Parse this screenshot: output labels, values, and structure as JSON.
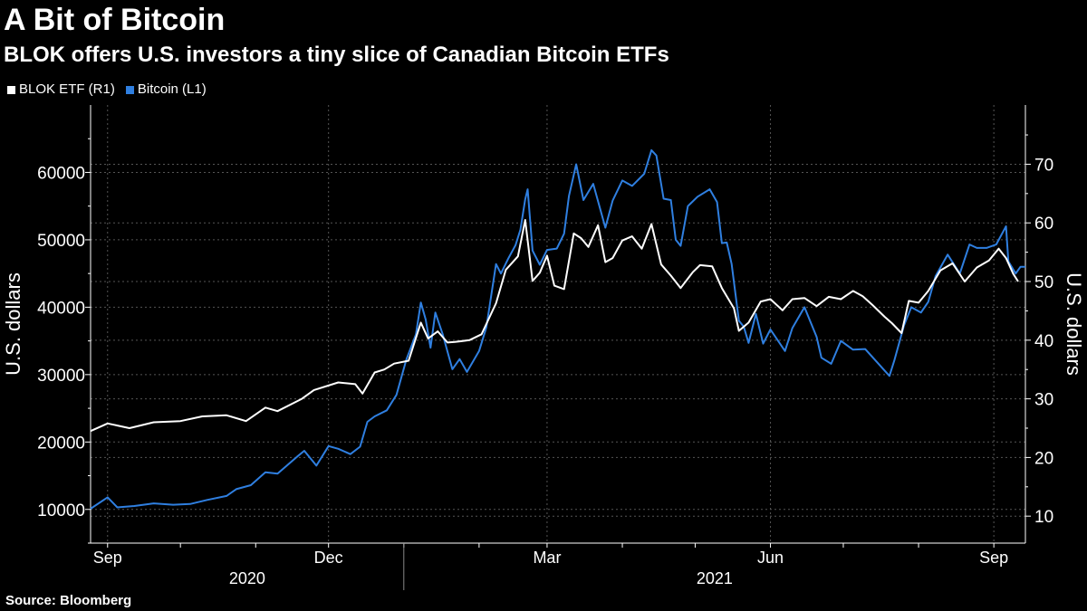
{
  "title": "A Bit of Bitcoin",
  "subtitle": "BLOK offers U.S. investors a tiny slice of Canadian Bitcoin ETFs",
  "source": "Source: Bloomberg",
  "colors": {
    "background": "#000000",
    "blok": "#ffffff",
    "bitcoin": "#2f7fe0",
    "grid": "#555555"
  },
  "chart_data": {
    "type": "line",
    "title": "A Bit of Bitcoin",
    "x_start": "2020-08-25",
    "x_end": "2021-09-14",
    "month_ticks": [
      "2020-09-01",
      "2020-10-01",
      "2020-11-01",
      "2020-12-01",
      "2021-01-01",
      "2021-02-01",
      "2021-03-01",
      "2021-04-01",
      "2021-05-01",
      "2021-06-01",
      "2021-07-01",
      "2021-08-01",
      "2021-09-01"
    ],
    "quarter_labels": [
      {
        "date": "2020-09-01",
        "label": "Sep"
      },
      {
        "date": "2020-12-01",
        "label": "Dec"
      },
      {
        "date": "2021-03-01",
        "label": "Mar"
      },
      {
        "date": "2021-06-01",
        "label": "Jun"
      },
      {
        "date": "2021-09-01",
        "label": "Sep"
      }
    ],
    "year_labels": [
      {
        "label": "2020",
        "from": "2020-08-25",
        "to": "2021-01-01"
      },
      {
        "label": "2021",
        "from": "2021-01-01",
        "to": "2021-09-14"
      }
    ],
    "year_divider": "2021-01-01",
    "left_axis": {
      "label": "U.S. dollars",
      "min": 5000,
      "max": 70000,
      "ticks": [
        10000,
        20000,
        30000,
        40000,
        50000,
        60000
      ]
    },
    "right_axis": {
      "label": "U.S. dollars",
      "min": 5.4,
      "max": 80.1,
      "ticks": [
        10,
        20,
        30,
        40,
        50,
        60,
        70
      ]
    },
    "series": [
      {
        "name": "Bitcoin (L1)",
        "axis": "left",
        "color": "#2f7fe0",
        "points": [
          [
            "2020-08-25",
            10100
          ],
          [
            "2020-09-01",
            11800
          ],
          [
            "2020-09-05",
            10300
          ],
          [
            "2020-09-12",
            10500
          ],
          [
            "2020-09-20",
            10900
          ],
          [
            "2020-09-28",
            10700
          ],
          [
            "2020-10-05",
            10800
          ],
          [
            "2020-10-12",
            11400
          ],
          [
            "2020-10-20",
            12000
          ],
          [
            "2020-10-24",
            13000
          ],
          [
            "2020-10-30",
            13600
          ],
          [
            "2020-11-05",
            15500
          ],
          [
            "2020-11-10",
            15300
          ],
          [
            "2020-11-18",
            17800
          ],
          [
            "2020-11-21",
            18700
          ],
          [
            "2020-11-26",
            16500
          ],
          [
            "2020-12-01",
            19400
          ],
          [
            "2020-12-05",
            19000
          ],
          [
            "2020-12-10",
            18200
          ],
          [
            "2020-12-14",
            19300
          ],
          [
            "2020-12-17",
            23000
          ],
          [
            "2020-12-20",
            23800
          ],
          [
            "2020-12-25",
            24700
          ],
          [
            "2020-12-29",
            27000
          ],
          [
            "2021-01-02",
            32200
          ],
          [
            "2021-01-06",
            36000
          ],
          [
            "2021-01-08",
            40700
          ],
          [
            "2021-01-10",
            38200
          ],
          [
            "2021-01-12",
            34000
          ],
          [
            "2021-01-14",
            39200
          ],
          [
            "2021-01-17",
            36000
          ],
          [
            "2021-01-21",
            30800
          ],
          [
            "2021-01-24",
            32300
          ],
          [
            "2021-01-27",
            30400
          ],
          [
            "2021-02-01",
            33500
          ],
          [
            "2021-02-04",
            37000
          ],
          [
            "2021-02-08",
            46400
          ],
          [
            "2021-02-10",
            45000
          ],
          [
            "2021-02-13",
            47200
          ],
          [
            "2021-02-16",
            49200
          ],
          [
            "2021-02-18",
            51500
          ],
          [
            "2021-02-20",
            56000
          ],
          [
            "2021-02-21",
            57500
          ],
          [
            "2021-02-23",
            48400
          ],
          [
            "2021-02-26",
            46300
          ],
          [
            "2021-03-01",
            48500
          ],
          [
            "2021-03-05",
            48700
          ],
          [
            "2021-03-08",
            50900
          ],
          [
            "2021-03-10",
            56500
          ],
          [
            "2021-03-13",
            61200
          ],
          [
            "2021-03-16",
            55900
          ],
          [
            "2021-03-20",
            58300
          ],
          [
            "2021-03-25",
            51800
          ],
          [
            "2021-03-28",
            55800
          ],
          [
            "2021-04-01",
            58800
          ],
          [
            "2021-04-05",
            58000
          ],
          [
            "2021-04-10",
            59800
          ],
          [
            "2021-04-13",
            63300
          ],
          [
            "2021-04-15",
            62500
          ],
          [
            "2021-04-18",
            56100
          ],
          [
            "2021-04-21",
            55900
          ],
          [
            "2021-04-23",
            50000
          ],
          [
            "2021-04-25",
            49100
          ],
          [
            "2021-04-28",
            55000
          ],
          [
            "2021-05-02",
            56400
          ],
          [
            "2021-05-07",
            57500
          ],
          [
            "2021-05-10",
            55600
          ],
          [
            "2021-05-12",
            49500
          ],
          [
            "2021-05-14",
            49600
          ],
          [
            "2021-05-16",
            46400
          ],
          [
            "2021-05-19",
            38000
          ],
          [
            "2021-05-21",
            37100
          ],
          [
            "2021-05-23",
            34700
          ],
          [
            "2021-05-26",
            39000
          ],
          [
            "2021-05-29",
            34600
          ],
          [
            "2021-06-01",
            36700
          ],
          [
            "2021-06-07",
            33500
          ],
          [
            "2021-06-10",
            36900
          ],
          [
            "2021-06-15",
            40000
          ],
          [
            "2021-06-20",
            35600
          ],
          [
            "2021-06-22",
            32500
          ],
          [
            "2021-06-26",
            31600
          ],
          [
            "2021-06-30",
            35000
          ],
          [
            "2021-07-05",
            33700
          ],
          [
            "2021-07-10",
            33800
          ],
          [
            "2021-07-15",
            31800
          ],
          [
            "2021-07-20",
            29800
          ],
          [
            "2021-07-22",
            32100
          ],
          [
            "2021-07-26",
            37300
          ],
          [
            "2021-07-29",
            40000
          ],
          [
            "2021-08-02",
            39200
          ],
          [
            "2021-08-05",
            40800
          ],
          [
            "2021-08-08",
            44600
          ],
          [
            "2021-08-13",
            47800
          ],
          [
            "2021-08-18",
            45000
          ],
          [
            "2021-08-22",
            49300
          ],
          [
            "2021-08-25",
            48800
          ],
          [
            "2021-08-29",
            48800
          ],
          [
            "2021-09-02",
            49300
          ],
          [
            "2021-09-06",
            52000
          ],
          [
            "2021-09-07",
            46800
          ],
          [
            "2021-09-10",
            45000
          ],
          [
            "2021-09-12",
            46000
          ],
          [
            "2021-09-14",
            46000
          ]
        ]
      },
      {
        "name": "BLOK ETF (R1)",
        "axis": "right",
        "color": "#ffffff",
        "points": [
          [
            "2020-08-25",
            24.5
          ],
          [
            "2020-09-01",
            25.8
          ],
          [
            "2020-09-10",
            25.0
          ],
          [
            "2020-09-20",
            26.0
          ],
          [
            "2020-10-01",
            26.2
          ],
          [
            "2020-10-10",
            27.0
          ],
          [
            "2020-10-20",
            27.2
          ],
          [
            "2020-10-28",
            26.2
          ],
          [
            "2020-11-05",
            28.5
          ],
          [
            "2020-11-10",
            27.9
          ],
          [
            "2020-11-20",
            30.0
          ],
          [
            "2020-11-25",
            31.5
          ],
          [
            "2020-12-05",
            32.8
          ],
          [
            "2020-12-12",
            32.5
          ],
          [
            "2020-12-15",
            30.9
          ],
          [
            "2020-12-20",
            34.5
          ],
          [
            "2020-12-24",
            35.0
          ],
          [
            "2020-12-28",
            36.0
          ],
          [
            "2021-01-03",
            36.5
          ],
          [
            "2021-01-08",
            43.0
          ],
          [
            "2021-01-11",
            40.3
          ],
          [
            "2021-01-15",
            41.5
          ],
          [
            "2021-01-19",
            39.6
          ],
          [
            "2021-01-22",
            39.7
          ],
          [
            "2021-01-28",
            40.0
          ],
          [
            "2021-02-02",
            41.0
          ],
          [
            "2021-02-08",
            46.3
          ],
          [
            "2021-02-12",
            52.0
          ],
          [
            "2021-02-17",
            54.3
          ],
          [
            "2021-02-20",
            60.5
          ],
          [
            "2021-02-23",
            50.1
          ],
          [
            "2021-02-26",
            51.5
          ],
          [
            "2021-03-01",
            54.4
          ],
          [
            "2021-03-04",
            49.3
          ],
          [
            "2021-03-08",
            48.7
          ],
          [
            "2021-03-12",
            58.2
          ],
          [
            "2021-03-15",
            57.4
          ],
          [
            "2021-03-18",
            55.9
          ],
          [
            "2021-03-22",
            59.6
          ],
          [
            "2021-03-25",
            53.3
          ],
          [
            "2021-03-28",
            54.0
          ],
          [
            "2021-04-01",
            57.0
          ],
          [
            "2021-04-05",
            57.7
          ],
          [
            "2021-04-09",
            55.6
          ],
          [
            "2021-04-13",
            59.8
          ],
          [
            "2021-04-17",
            52.9
          ],
          [
            "2021-04-21",
            51.0
          ],
          [
            "2021-04-25",
            48.9
          ],
          [
            "2021-04-30",
            51.6
          ],
          [
            "2021-05-03",
            52.8
          ],
          [
            "2021-05-08",
            52.6
          ],
          [
            "2021-05-12",
            48.9
          ],
          [
            "2021-05-17",
            45.4
          ],
          [
            "2021-05-19",
            41.6
          ],
          [
            "2021-05-23",
            43.0
          ],
          [
            "2021-05-28",
            46.6
          ],
          [
            "2021-06-01",
            47.0
          ],
          [
            "2021-06-06",
            45.1
          ],
          [
            "2021-06-10",
            47.0
          ],
          [
            "2021-06-15",
            47.2
          ],
          [
            "2021-06-20",
            45.8
          ],
          [
            "2021-06-25",
            47.4
          ],
          [
            "2021-06-30",
            47.0
          ],
          [
            "2021-07-05",
            48.4
          ],
          [
            "2021-07-09",
            47.5
          ],
          [
            "2021-07-13",
            46.0
          ],
          [
            "2021-07-18",
            44.0
          ],
          [
            "2021-07-21",
            42.9
          ],
          [
            "2021-07-25",
            41.2
          ],
          [
            "2021-07-28",
            46.7
          ],
          [
            "2021-08-01",
            46.4
          ],
          [
            "2021-08-05",
            48.4
          ],
          [
            "2021-08-10",
            51.9
          ],
          [
            "2021-08-15",
            53.1
          ],
          [
            "2021-08-20",
            50.0
          ],
          [
            "2021-08-25",
            52.4
          ],
          [
            "2021-08-30",
            53.6
          ],
          [
            "2021-09-03",
            55.6
          ],
          [
            "2021-09-06",
            54.0
          ],
          [
            "2021-09-09",
            51.3
          ],
          [
            "2021-09-11",
            50.0
          ]
        ]
      }
    ]
  }
}
